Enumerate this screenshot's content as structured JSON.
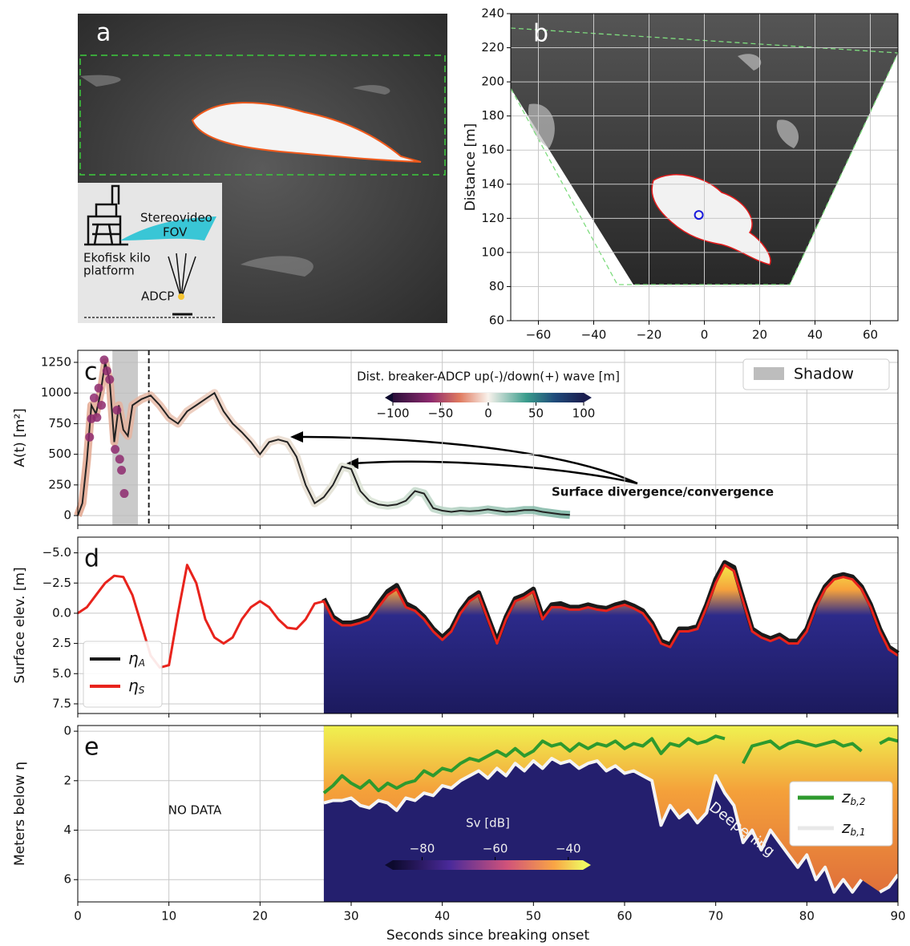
{
  "panel_a": {
    "label": "a",
    "fov_label": [
      "Stereovideo",
      "FOV"
    ],
    "platform_label": [
      "Ekofisk kilo",
      "platform"
    ],
    "adcp_label": "ADCP"
  },
  "chart_data": [
    {
      "type": "scatter",
      "label": "b",
      "ylabel": "Distance [m]",
      "xlim": [
        -70,
        70
      ],
      "ylim": [
        60,
        240
      ],
      "xticks": [
        {
          "value": -60,
          "label": "−60"
        },
        {
          "value": -40,
          "label": "−40"
        },
        {
          "value": -20,
          "label": "−20"
        },
        0,
        20,
        40,
        60
      ],
      "yticks": [
        60,
        80,
        100,
        120,
        140,
        160,
        180,
        200,
        220,
        240
      ],
      "grid": true,
      "x": [
        -2
      ],
      "values": [
        122
      ],
      "color": "#1a1adc"
    },
    {
      "type": "line",
      "label": "c",
      "ylabel": "A(t) [m²]",
      "xlim": [
        0,
        90
      ],
      "ylim": [
        -78,
        1348
      ],
      "xticks": [
        0,
        10,
        20,
        30,
        40,
        50,
        60,
        70,
        80,
        90
      ],
      "yticks": [
        0,
        250,
        500,
        750,
        1000,
        1250
      ],
      "grid": true,
      "x": [
        0,
        0.5,
        1,
        1.5,
        2,
        2.5,
        3,
        3.5,
        4,
        4.5,
        5,
        5.5,
        6,
        7,
        8,
        9,
        10,
        11,
        12,
        13,
        14,
        15,
        16,
        17,
        18,
        19,
        20,
        21,
        22,
        23,
        24,
        25,
        26,
        27,
        28,
        29,
        30,
        31,
        32,
        33,
        34,
        35,
        36,
        37,
        38,
        39,
        40,
        41,
        42,
        43,
        44,
        45,
        46,
        47,
        48,
        49,
        50,
        51,
        52,
        53,
        54
      ],
      "values": [
        0,
        100,
        450,
        900,
        830,
        1000,
        1250,
        1100,
        600,
        900,
        700,
        650,
        900,
        950,
        980,
        900,
        800,
        750,
        850,
        900,
        950,
        1000,
        850,
        750,
        680,
        600,
        500,
        600,
        620,
        600,
        480,
        250,
        100,
        150,
        250,
        400,
        380,
        200,
        120,
        90,
        80,
        90,
        120,
        200,
        180,
        60,
        40,
        30,
        40,
        35,
        40,
        50,
        40,
        30,
        35,
        45,
        45,
        30,
        20,
        10,
        5
      ],
      "color": "#222222",
      "points": {
        "x": [
          1.3,
          1.5,
          1.8,
          2.1,
          2.3,
          2.6,
          2.9,
          3.2,
          3.5,
          4.1,
          4.3,
          4.6,
          4.8,
          5.1
        ],
        "values": [
          640,
          790,
          960,
          800,
          1040,
          900,
          1270,
          1180,
          1110,
          540,
          860,
          460,
          370,
          180
        ],
        "color": "#8e2a6e"
      },
      "shadow": {
        "name": "Shadow",
        "span": [
          3.8,
          6.6
        ],
        "color": "#bdbdbd"
      },
      "vline": 7.8,
      "colorbar": {
        "label": "Dist. breaker-ADCP up(-)/down(+) wave [m]",
        "lim": [
          -100,
          100
        ],
        "ticks": [
          {
            "value": -100,
            "label": "−100"
          },
          {
            "value": -50,
            "label": "−50"
          },
          0,
          50,
          100
        ]
      },
      "annotation": "Surface divergence/convergence"
    },
    {
      "type": "line",
      "label": "d",
      "ylabel": "Surface elev. [m]",
      "xlim": [
        0,
        90
      ],
      "ylim": [
        8.3,
        -6.3
      ],
      "xticks": [
        0,
        10,
        20,
        30,
        40,
        50,
        60,
        70,
        80,
        90
      ],
      "yticks": [
        {
          "value": -5,
          "label": "−5.0"
        },
        {
          "value": -2.5,
          "label": "−2.5"
        },
        {
          "value": 0,
          "label": "0.0"
        },
        {
          "value": 2.5,
          "label": "2.5"
        },
        {
          "value": 5,
          "label": "5.0"
        },
        {
          "value": 7.5,
          "label": "7.5"
        }
      ],
      "grid": true,
      "series": [
        {
          "name": "ηA",
          "color": "#1a1a1a",
          "x": [
            27,
            28,
            29,
            30,
            31,
            32,
            33,
            34,
            35,
            36,
            37,
            38,
            39,
            40,
            41,
            42,
            43,
            44,
            45,
            46,
            47,
            48,
            49,
            50,
            51,
            52,
            53,
            54,
            55,
            56,
            57,
            58,
            59,
            60,
            61,
            62,
            63,
            64,
            65,
            66,
            67,
            68,
            69,
            70,
            71,
            72,
            73,
            74,
            75,
            76,
            77,
            78,
            79,
            80,
            81,
            82,
            83,
            84,
            85,
            86,
            87,
            88,
            89,
            90
          ],
          "values": [
            -1.2,
            0.3,
            0.8,
            0.8,
            0.6,
            0.3,
            -0.8,
            -1.8,
            -2.3,
            -0.8,
            -0.4,
            0.3,
            1.3,
            2.0,
            1.3,
            -0.2,
            -1.2,
            -1.7,
            0.3,
            2.3,
            0.3,
            -1.2,
            -1.5,
            -2.0,
            0.3,
            -0.7,
            -0.8,
            -0.5,
            -0.5,
            -0.7,
            -0.5,
            -0.4,
            -0.7,
            -0.9,
            -0.6,
            -0.2,
            0.8,
            2.3,
            2.6,
            1.3,
            1.3,
            1.1,
            -0.7,
            -2.8,
            -4.2,
            -3.8,
            -1.2,
            1.3,
            1.8,
            2.1,
            1.8,
            2.3,
            2.3,
            1.3,
            -0.7,
            -2.2,
            -3.0,
            -3.2,
            -3.0,
            -2.2,
            -0.7,
            1.3,
            2.8,
            3.3
          ]
        },
        {
          "name": "ηS",
          "color": "#e8231c",
          "x": [
            0,
            1,
            2,
            3,
            4,
            5,
            6,
            7,
            8,
            9,
            10,
            11,
            12,
            13,
            14,
            15,
            16,
            17,
            18,
            19,
            20,
            21,
            22,
            23,
            24,
            25,
            26,
            27,
            28,
            29,
            30,
            31,
            32,
            33,
            34,
            35,
            36,
            37,
            38,
            39,
            40,
            41,
            42,
            43,
            44,
            45,
            46,
            47,
            48,
            49,
            50,
            51,
            52,
            53,
            54,
            55,
            56,
            57,
            58,
            59,
            60,
            61,
            62,
            63,
            64,
            65,
            66,
            67,
            68,
            69,
            70,
            71,
            72,
            73,
            74,
            75,
            76,
            77,
            78,
            79,
            80,
            81,
            82,
            83,
            84,
            85,
            86,
            87,
            88,
            89,
            90
          ],
          "values": [
            0,
            -0.5,
            -1.5,
            -2.5,
            -3.1,
            -3.0,
            -1.5,
            1,
            3.5,
            4.5,
            4.3,
            0,
            -4,
            -2.5,
            0.5,
            2.0,
            2.5,
            2.0,
            0.5,
            -0.5,
            -1.0,
            -0.5,
            0.5,
            1.2,
            1.3,
            0.5,
            -0.8,
            -1.0,
            0.5,
            1.0,
            1.0,
            0.8,
            0.5,
            -0.5,
            -1.5,
            -2.0,
            -0.5,
            -0.2,
            0.5,
            1.5,
            2.2,
            1.5,
            0,
            -1.0,
            -1.5,
            0.5,
            2.5,
            0.5,
            -1.0,
            -1.3,
            -1.8,
            0.5,
            -0.5,
            -0.5,
            -0.3,
            -0.3,
            -0.5,
            -0.3,
            -0.2,
            -0.5,
            -0.7,
            -0.4,
            0,
            1.0,
            2.5,
            2.8,
            1.5,
            1.5,
            1.3,
            -0.5,
            -2.5,
            -4.0,
            -3.5,
            -1,
            1.5,
            2.0,
            2.3,
            2.0,
            2.5,
            2.5,
            1.5,
            -0.5,
            -2.0,
            -2.8,
            -3.0,
            -2.8,
            -2.0,
            -0.5,
            1.5,
            3.0,
            3.5
          ]
        }
      ]
    },
    {
      "type": "line",
      "label": "e",
      "ylabel": "Meters below η",
      "xlabel": "Seconds since breaking onset",
      "xlim": [
        0,
        90
      ],
      "ylim": [
        6.9,
        -0.23
      ],
      "xticks": [
        0,
        10,
        20,
        30,
        40,
        50,
        60,
        70,
        80,
        90
      ],
      "yticks": [
        0,
        2,
        4,
        6
      ],
      "grid": true,
      "no_data": "NO DATA",
      "annotation": "Deepening",
      "colorbar": {
        "label": "Sv [dB]",
        "lim": [
          -88,
          -36
        ],
        "ticks": [
          {
            "value": -80,
            "label": "−80"
          },
          {
            "value": -60,
            "label": "−60"
          },
          {
            "value": -40,
            "label": "−40"
          }
        ]
      },
      "series": [
        {
          "name": "zb,2",
          "color": "#2e9a2e",
          "x": [
            27,
            28,
            29,
            30,
            31,
            32,
            33,
            34,
            35,
            36,
            37,
            38,
            39,
            40,
            41,
            42,
            43,
            44,
            45,
            46,
            47,
            48,
            49,
            50,
            51,
            52,
            53,
            54,
            55,
            56,
            57,
            58,
            59,
            60,
            61,
            62,
            63,
            64,
            65,
            66,
            67,
            68,
            69,
            70,
            71,
            72,
            73,
            74,
            75,
            76,
            77,
            78,
            79,
            80,
            81,
            82,
            83,
            84,
            85,
            86,
            87,
            88,
            89,
            90
          ],
          "values": [
            2.5,
            2.2,
            1.8,
            2.1,
            2.3,
            2.0,
            2.4,
            2.1,
            2.3,
            2.1,
            2.0,
            1.6,
            1.8,
            1.5,
            1.6,
            1.3,
            1.1,
            1.2,
            1.0,
            0.8,
            1.0,
            0.7,
            1.0,
            0.8,
            0.4,
            0.6,
            0.5,
            0.8,
            0.5,
            0.7,
            0.5,
            0.6,
            0.4,
            0.7,
            0.5,
            0.6,
            0.3,
            0.9,
            0.5,
            0.6,
            0.3,
            0.5,
            0.4,
            0.2,
            0.3,
            null,
            1.3,
            0.6,
            0.5,
            0.4,
            0.7,
            0.5,
            0.4,
            0.5,
            0.6,
            0.5,
            0.4,
            0.6,
            0.5,
            0.8,
            null,
            0.5,
            0.3,
            0.4
          ]
        },
        {
          "name": "zb,1",
          "color": "#f4f4f4",
          "x": [
            27,
            28,
            29,
            30,
            31,
            32,
            33,
            34,
            35,
            36,
            37,
            38,
            39,
            40,
            41,
            42,
            43,
            44,
            45,
            46,
            47,
            48,
            49,
            50,
            51,
            52,
            53,
            54,
            55,
            56,
            57,
            58,
            59,
            60,
            61,
            62,
            63,
            64,
            65,
            66,
            67,
            68,
            69,
            70,
            71,
            72,
            73,
            74,
            75,
            76,
            77,
            78,
            79,
            80,
            81,
            82,
            83,
            84,
            85,
            86,
            87,
            88,
            89,
            90
          ],
          "values": [
            2.9,
            2.8,
            2.8,
            2.7,
            3.0,
            3.1,
            2.8,
            2.9,
            3.2,
            2.7,
            2.8,
            2.5,
            2.6,
            2.2,
            2.3,
            2.0,
            1.8,
            1.6,
            1.9,
            1.5,
            1.8,
            1.3,
            1.6,
            1.2,
            1.5,
            1.1,
            1.3,
            1.2,
            1.5,
            1.3,
            1.2,
            1.6,
            1.4,
            1.7,
            1.6,
            1.8,
            2.0,
            3.8,
            3.0,
            3.5,
            3.2,
            3.7,
            3.3,
            1.8,
            2.5,
            3.0,
            4.5,
            4.0,
            4.8,
            4.0,
            4.5,
            5.0,
            5.5,
            5.0,
            6.0,
            5.5,
            6.5,
            6.0,
            6.5,
            6.0,
            null,
            6.5,
            6.3,
            5.8
          ]
        }
      ]
    }
  ]
}
